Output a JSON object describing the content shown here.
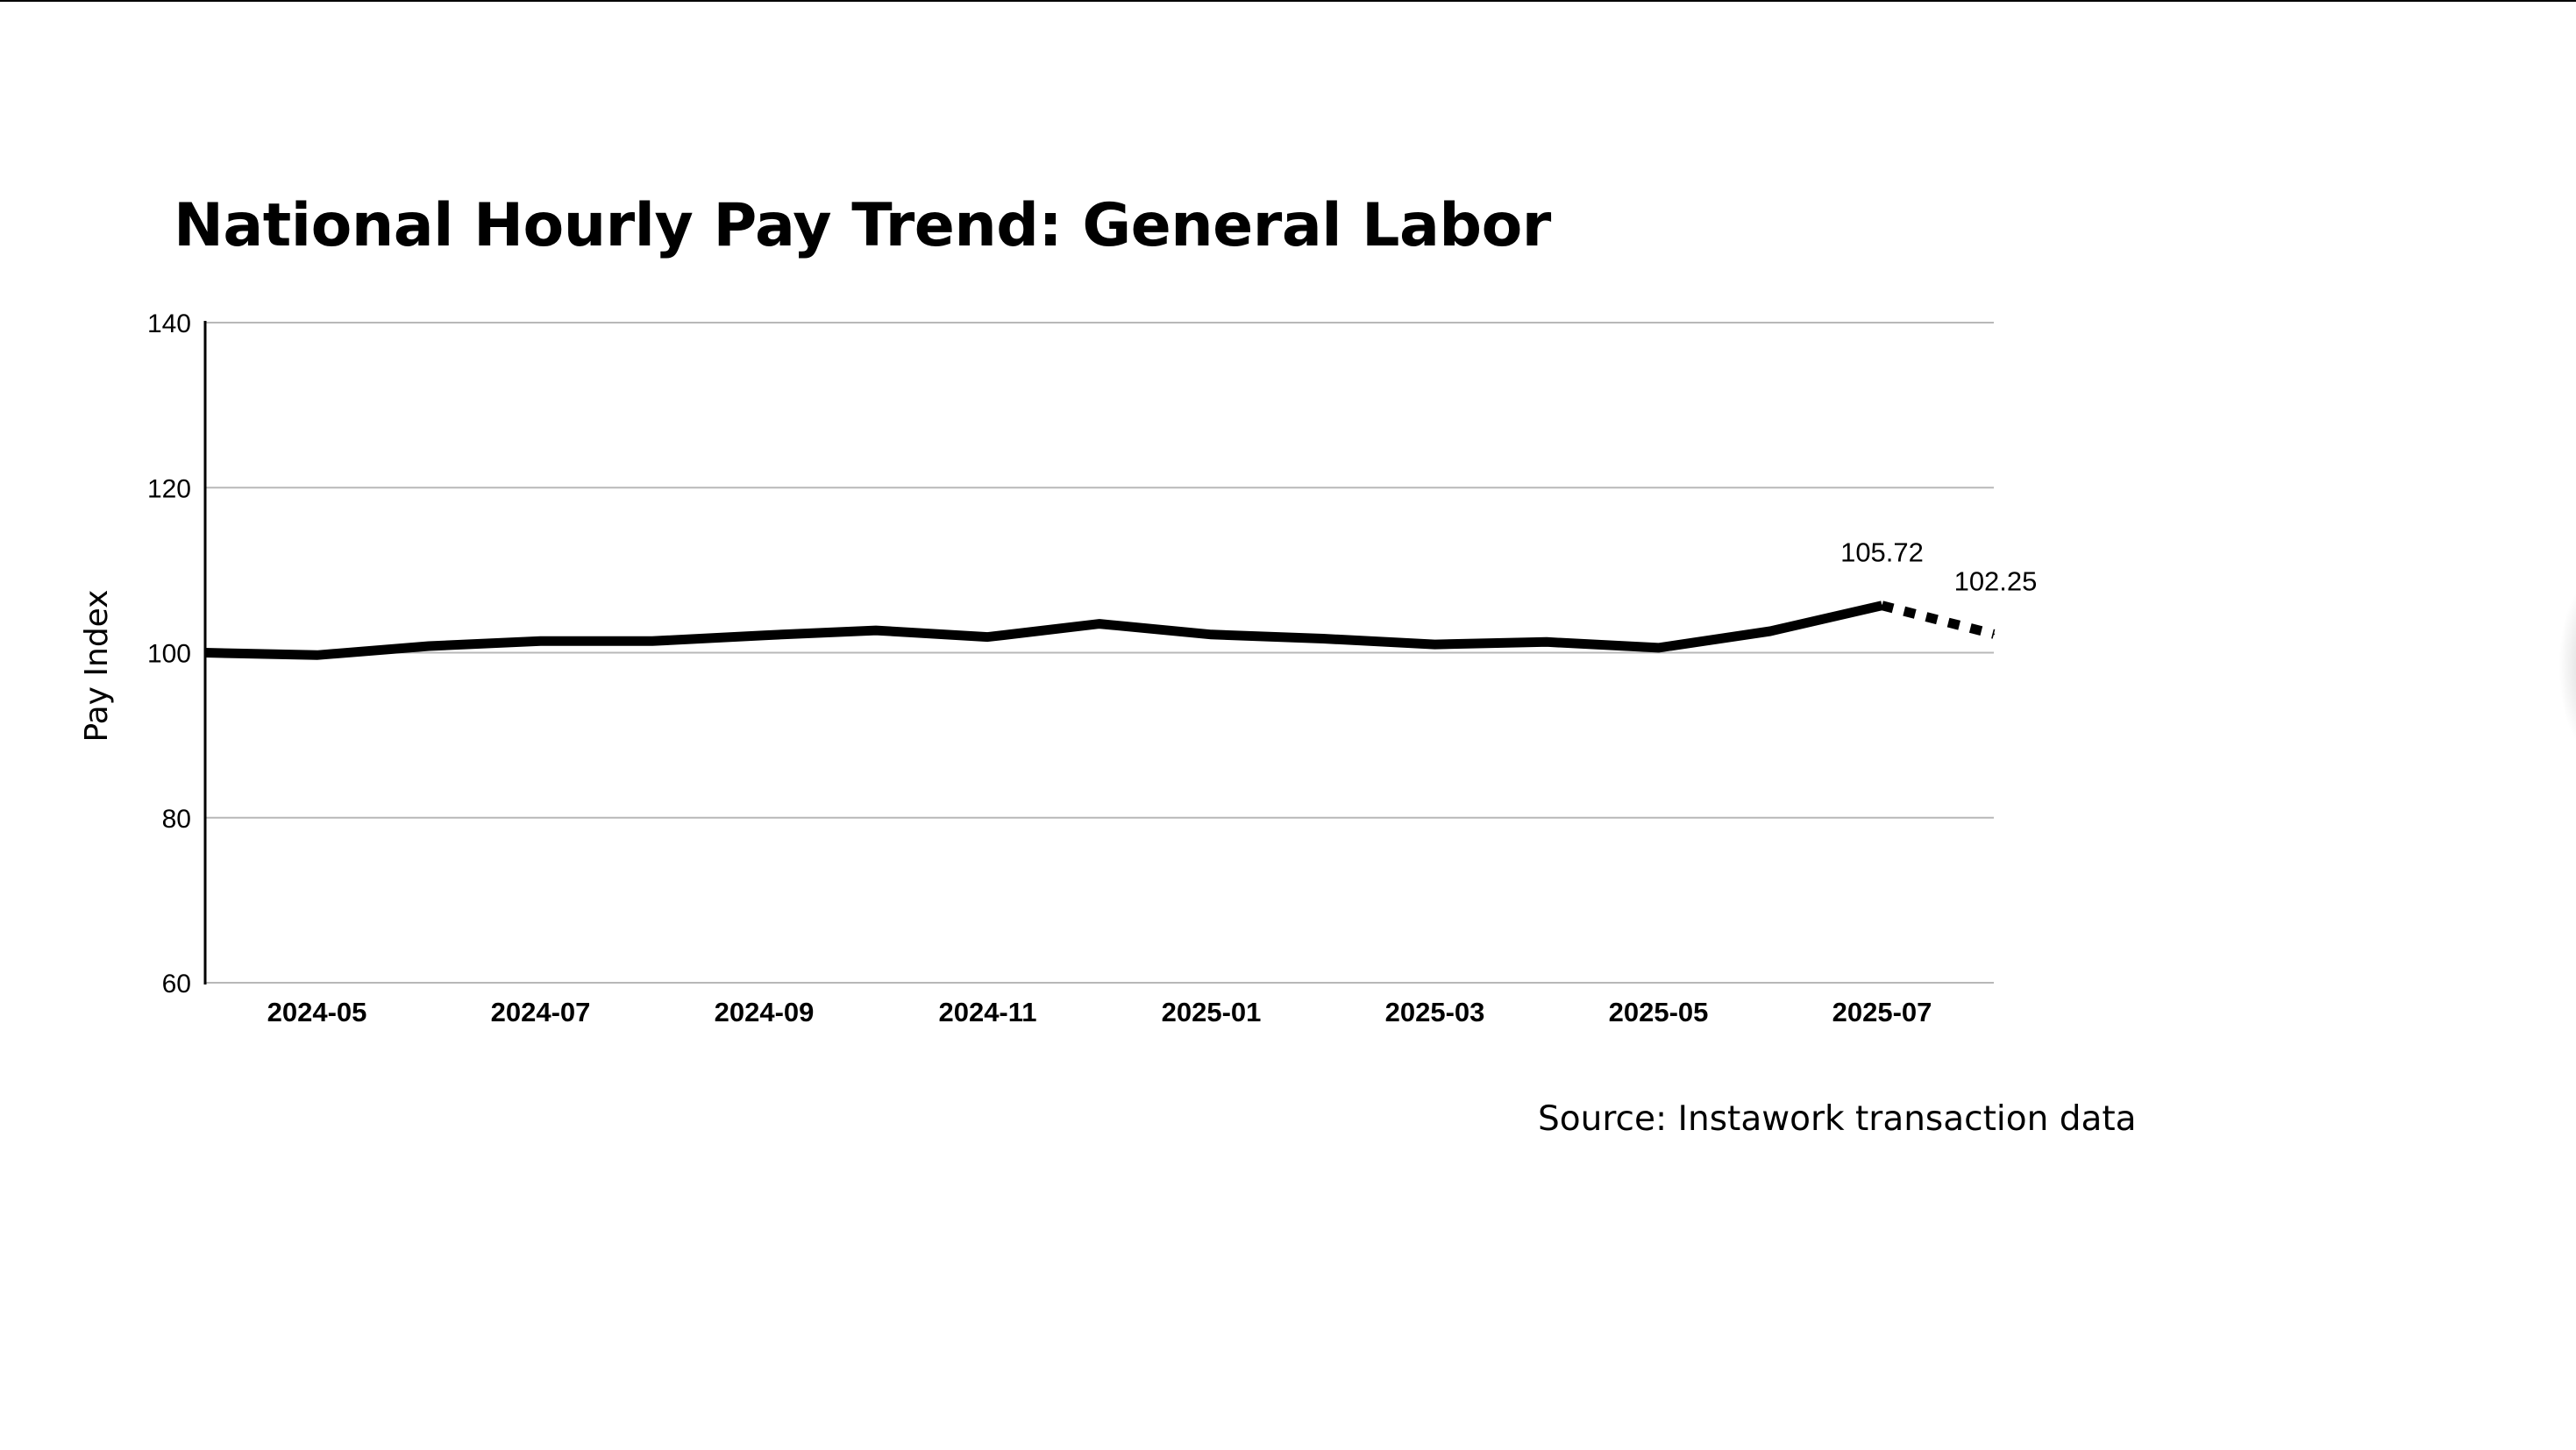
{
  "chart_data": {
    "type": "line",
    "title": "National Hourly Pay Trend: General Labor",
    "xlabel": "",
    "ylabel": "Pay Index",
    "ylim": [
      60,
      140
    ],
    "yticks": [
      60,
      80,
      100,
      120,
      140
    ],
    "x_range": [
      "2024-04",
      "2025-08"
    ],
    "x": [
      "2024-04",
      "2024-05",
      "2024-06",
      "2024-07",
      "2024-08",
      "2024-09",
      "2024-10",
      "2024-11",
      "2024-12",
      "2025-01",
      "2025-02",
      "2025-03",
      "2025-04",
      "2025-05",
      "2025-06",
      "2025-07",
      "2025-08"
    ],
    "xticks": [
      "2024-05",
      "2024-07",
      "2024-09",
      "2024-11",
      "2025-01",
      "2025-03",
      "2025-05",
      "2025-07"
    ],
    "series": [
      {
        "style": "solid",
        "color": "#000000",
        "values": [
          100.0,
          99.7,
          100.8,
          101.4,
          101.4,
          102.1,
          102.7,
          101.9,
          103.5,
          102.2,
          101.7,
          101.0,
          101.3,
          100.6,
          102.6,
          105.72,
          null
        ]
      },
      {
        "style": "dotted",
        "color": "#000000",
        "values": [
          null,
          null,
          null,
          null,
          null,
          null,
          null,
          null,
          null,
          null,
          null,
          null,
          null,
          null,
          null,
          105.72,
          102.25
        ]
      }
    ],
    "annotations": [
      {
        "x": "2025-07",
        "y": 105.72,
        "text": "105.72"
      },
      {
        "x": "2025-08",
        "y": 102.25,
        "text": "102.25"
      }
    ],
    "grid": "horizontal",
    "legend": "none",
    "source": "Source: Instawork transaction data"
  }
}
